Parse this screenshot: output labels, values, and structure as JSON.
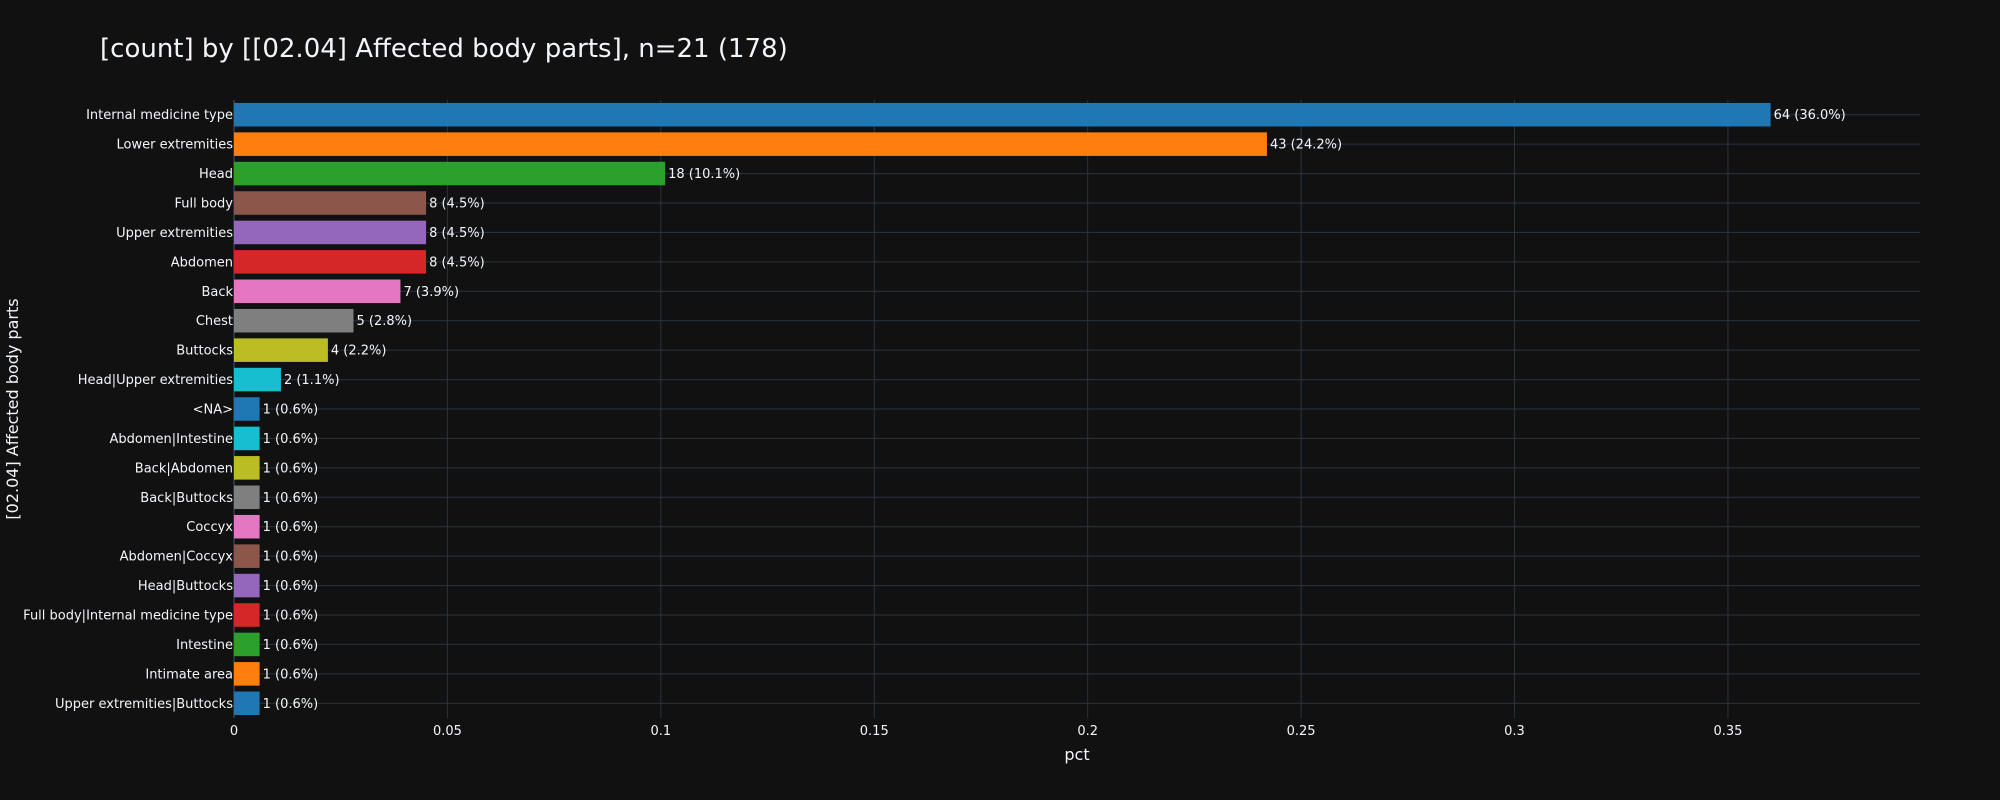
{
  "chart_data": {
    "type": "bar",
    "orientation": "horizontal",
    "title": "[count] by [[02.04] Affected body parts], n=21 (178)",
    "xlabel": "pct",
    "ylabel": "[02.04] Affected body parts",
    "xlim": [
      0,
      0.395
    ],
    "xticks": [
      0,
      0.05,
      0.1,
      0.15,
      0.2,
      0.25,
      0.3,
      0.35
    ],
    "xtick_labels": [
      "0",
      "0.05",
      "0.1",
      "0.15",
      "0.2",
      "0.25",
      "0.3",
      "0.35"
    ],
    "grid": true,
    "legend": "none",
    "background": "#111111",
    "categories": [
      "Internal medicine type",
      "Lower extremities",
      "Head",
      "Full body",
      "Upper extremities",
      "Abdomen",
      "Back",
      "Chest",
      "Buttocks",
      "Head|Upper extremities",
      "<NA>",
      "Abdomen|Intestine",
      "Back|Abdomen",
      "Back|Buttocks",
      "Coccyx",
      "Abdomen|Coccyx",
      "Head|Buttocks",
      "Full body|Internal medicine type",
      "Intestine",
      "Intimate area",
      "Upper extremities|Buttocks"
    ],
    "values": [
      0.36,
      0.242,
      0.101,
      0.045,
      0.045,
      0.045,
      0.039,
      0.028,
      0.022,
      0.011,
      0.006,
      0.006,
      0.006,
      0.006,
      0.006,
      0.006,
      0.006,
      0.006,
      0.006,
      0.006,
      0.006
    ],
    "counts": [
      64,
      43,
      18,
      8,
      8,
      8,
      7,
      5,
      4,
      2,
      1,
      1,
      1,
      1,
      1,
      1,
      1,
      1,
      1,
      1,
      1
    ],
    "data_labels": [
      "64 (36.0%)",
      "43 (24.2%)",
      "18 (10.1%)",
      "8 (4.5%)",
      "8 (4.5%)",
      "8 (4.5%)",
      "7 (3.9%)",
      "5 (2.8%)",
      "4 (2.2%)",
      "2 (1.1%)",
      "1 (0.6%)",
      "1 (0.6%)",
      "1 (0.6%)",
      "1 (0.6%)",
      "1 (0.6%)",
      "1 (0.6%)",
      "1 (0.6%)",
      "1 (0.6%)",
      "1 (0.6%)",
      "1 (0.6%)",
      "1 (0.6%)"
    ],
    "colors": [
      "#1f77b4",
      "#ff7f0e",
      "#2ca02c",
      "#8c564b",
      "#9467bd",
      "#d62728",
      "#e377c2",
      "#7f7f7f",
      "#bcbd22",
      "#17becf",
      "#1f77b4",
      "#17becf",
      "#bcbd22",
      "#7f7f7f",
      "#e377c2",
      "#8c564b",
      "#9467bd",
      "#d62728",
      "#2ca02c",
      "#ff7f0e",
      "#1f77b4"
    ]
  }
}
